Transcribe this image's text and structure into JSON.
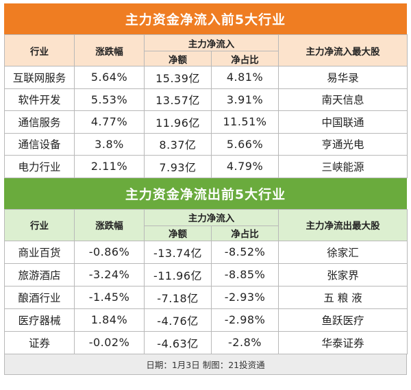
{
  "inflow": {
    "title": "主力资金净流入前5大行业",
    "headers": {
      "industry": "行业",
      "change": "涨跌幅",
      "main_flow": "主力净流入",
      "net_amount": "净额",
      "net_ratio": "净占比",
      "top_stock": "主力净流入最大股"
    },
    "rows": [
      {
        "industry": "互联网服务",
        "change": "5.64%",
        "amount": "15.39亿",
        "ratio": "4.81%",
        "stock": "易华录"
      },
      {
        "industry": "软件开发",
        "change": "5.53%",
        "amount": "13.57亿",
        "ratio": "3.91%",
        "stock": "南天信息"
      },
      {
        "industry": "通信服务",
        "change": "4.77%",
        "amount": "11.96亿",
        "ratio": "11.51%",
        "stock": "中国联通"
      },
      {
        "industry": "通信设备",
        "change": "3.8%",
        "amount": "8.37亿",
        "ratio": "5.66%",
        "stock": "亨通光电"
      },
      {
        "industry": "电力行业",
        "change": "2.11%",
        "amount": "7.93亿",
        "ratio": "4.79%",
        "stock": "三峡能源"
      }
    ]
  },
  "outflow": {
    "title": "主力资金净流出前5大行业",
    "headers": {
      "industry": "行业",
      "change": "涨跌幅",
      "main_flow": "主力净流入",
      "net_amount": "净额",
      "net_ratio": "净占比",
      "top_stock": "主力净流出最大股"
    },
    "rows": [
      {
        "industry": "商业百货",
        "change": "-0.86%",
        "amount": "-13.74亿",
        "ratio": "-8.52%",
        "stock": "徐家汇"
      },
      {
        "industry": "旅游酒店",
        "change": "-3.24%",
        "amount": "-11.96亿",
        "ratio": "-8.85%",
        "stock": "张家界"
      },
      {
        "industry": "酿酒行业",
        "change": "-1.45%",
        "amount": "-7.18亿",
        "ratio": "-2.93%",
        "stock": "五 粮 液"
      },
      {
        "industry": "医疗器械",
        "change": "1.84%",
        "amount": "-4.76亿",
        "ratio": "-2.98%",
        "stock": "鱼跃医疗"
      },
      {
        "industry": "证券",
        "change": "-0.02%",
        "amount": "-4.63亿",
        "ratio": "-2.8%",
        "stock": "华泰证券"
      }
    ]
  },
  "footer": "日期：1月3日 制图：21投资通",
  "colors": {
    "inflow_banner": "#ef7d22",
    "inflow_header": "#fce3cc",
    "outflow_banner": "#6aab3d",
    "outflow_header": "#dcefd0"
  }
}
